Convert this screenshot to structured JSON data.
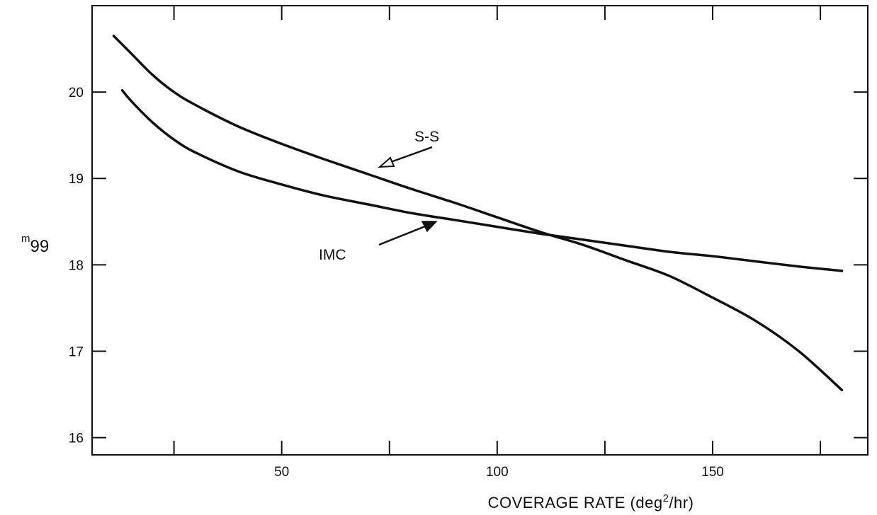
{
  "chart_data": {
    "type": "line",
    "xlabel_main": "COVERAGE RATE (deg",
    "xlabel_sup": "2",
    "xlabel_tail": "/hr)",
    "ylabel_super": "m",
    "ylabel_sub": "99",
    "xlim": [
      6,
      186
    ],
    "ylim": [
      15.8,
      21.0
    ],
    "xticks": [
      50,
      100,
      150
    ],
    "xtick_labels": [
      "50",
      "100",
      "150"
    ],
    "xtick_minor": [
      25,
      75,
      125,
      175
    ],
    "yticks": [
      16,
      17,
      18,
      19,
      20
    ],
    "ytick_labels": [
      "16",
      "17",
      "18",
      "19",
      "20"
    ],
    "grid": false,
    "series": [
      {
        "name": "S-S",
        "x": [
          11,
          15,
          20,
          25,
          30,
          40,
          50,
          60,
          70,
          80,
          90,
          100,
          110,
          120,
          130,
          140,
          150,
          160,
          170,
          180
        ],
        "y": [
          20.65,
          20.45,
          20.2,
          20.0,
          19.85,
          19.6,
          19.4,
          19.22,
          19.05,
          18.88,
          18.72,
          18.55,
          18.38,
          18.23,
          18.05,
          17.87,
          17.62,
          17.35,
          17.0,
          16.55
        ]
      },
      {
        "name": "IMC",
        "x": [
          13,
          15,
          20,
          25,
          30,
          40,
          50,
          60,
          70,
          80,
          90,
          100,
          110,
          120,
          130,
          140,
          150,
          160,
          170,
          180
        ],
        "y": [
          20.02,
          19.9,
          19.65,
          19.45,
          19.3,
          19.08,
          18.93,
          18.8,
          18.7,
          18.6,
          18.52,
          18.44,
          18.36,
          18.29,
          18.22,
          18.15,
          18.1,
          18.04,
          17.98,
          17.93
        ]
      }
    ],
    "annotations": [
      {
        "text": "S-S",
        "arrow": "open"
      },
      {
        "text": "IMC",
        "arrow": "filled"
      }
    ]
  }
}
